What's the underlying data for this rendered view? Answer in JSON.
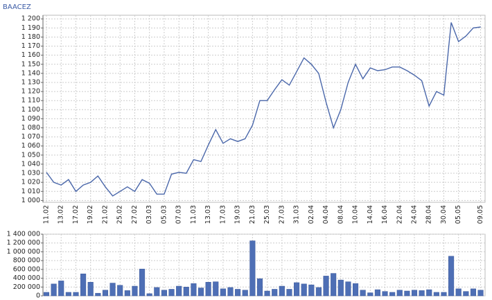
{
  "chart_data": [
    {
      "type": "line",
      "title": "BAACEZ",
      "categories": [
        "11.02",
        null,
        "13.02",
        null,
        "17.02",
        null,
        "19.02",
        null,
        "21.02",
        null,
        "25.02",
        null,
        "27.02",
        null,
        "03.03",
        null,
        "05.03",
        null,
        "07.03",
        null,
        "11.03",
        null,
        "13.03",
        null,
        "17.03",
        null,
        "19.03",
        null,
        "21.03",
        null,
        "25.03",
        null,
        "27.03",
        null,
        "31.03",
        null,
        "02.04",
        null,
        "04.04",
        null,
        "08.04",
        null,
        "10.04",
        null,
        "14.04",
        null,
        "16.04",
        null,
        "22.04",
        null,
        "24.04",
        null,
        "28.04",
        null,
        "30.04",
        null,
        "05.05",
        null,
        null,
        "09.05"
      ],
      "values": [
        1031,
        1020,
        1017,
        1023,
        1010,
        1017,
        1020,
        1027,
        1015,
        1005,
        1010,
        1015,
        1010,
        1023,
        1019,
        1007,
        1007,
        1029,
        1031,
        1030,
        1045,
        1043,
        1061,
        1078,
        1063,
        1068,
        1065,
        1068,
        1083,
        1110,
        1110,
        1122,
        1133,
        1127,
        1142,
        1157,
        1150,
        1140,
        1108,
        1080,
        1100,
        1130,
        1150,
        1134,
        1146,
        1143,
        1144,
        1147,
        1147,
        1143,
        1138,
        1132,
        1104,
        1120,
        1116,
        1196,
        1175,
        1181,
        1190,
        1191
      ],
      "color": "#4a67aa",
      "ylim": [
        998,
        1204
      ],
      "yticks": [
        {
          "value": 1000,
          "label": "1 000"
        },
        {
          "value": 1010,
          "label": "1 010"
        },
        {
          "value": 1020,
          "label": "1 020"
        },
        {
          "value": 1030,
          "label": "1 030"
        },
        {
          "value": 1040,
          "label": "1 040"
        },
        {
          "value": 1050,
          "label": "1 050"
        },
        {
          "value": 1060,
          "label": "1 060"
        },
        {
          "value": 1070,
          "label": "1 070"
        },
        {
          "value": 1080,
          "label": "1 080"
        },
        {
          "value": 1090,
          "label": "1 090"
        },
        {
          "value": 1100,
          "label": "1 100"
        },
        {
          "value": 1110,
          "label": "1 110"
        },
        {
          "value": 1120,
          "label": "1 120"
        },
        {
          "value": 1130,
          "label": "1 130"
        },
        {
          "value": 1140,
          "label": "1 140"
        },
        {
          "value": 1150,
          "label": "1 150"
        },
        {
          "value": 1160,
          "label": "1 160"
        },
        {
          "value": 1170,
          "label": "1 170"
        },
        {
          "value": 1180,
          "label": "1 180"
        },
        {
          "value": 1190,
          "label": "1 190"
        },
        {
          "value": 1200,
          "label": "1 200"
        }
      ],
      "grid": true
    },
    {
      "type": "bar",
      "values": [
        80000,
        270000,
        340000,
        80000,
        80000,
        500000,
        310000,
        60000,
        130000,
        290000,
        240000,
        120000,
        220000,
        610000,
        50000,
        190000,
        130000,
        150000,
        220000,
        200000,
        280000,
        180000,
        310000,
        320000,
        160000,
        190000,
        150000,
        130000,
        1250000,
        390000,
        110000,
        150000,
        220000,
        150000,
        300000,
        270000,
        250000,
        190000,
        450000,
        510000,
        360000,
        320000,
        280000,
        130000,
        70000,
        140000,
        100000,
        80000,
        130000,
        110000,
        130000,
        120000,
        140000,
        80000,
        80000,
        900000,
        160000,
        100000,
        160000,
        130000
      ],
      "color": "#4e6fb5",
      "ylim": [
        0,
        1400000
      ],
      "yticks": [
        0,
        {
          "value": 200000,
          "label": "200 000"
        },
        {
          "value": 400000,
          "label": "400 000"
        },
        {
          "value": 600000,
          "label": "600 000"
        },
        {
          "value": 800000,
          "label": "800 000"
        },
        {
          "value": 1000000,
          "label": "1 000 000"
        },
        {
          "value": 1200000,
          "label": "1 200 000"
        },
        {
          "value": 1400000,
          "label": "1 400 000"
        }
      ],
      "grid": true
    }
  ]
}
